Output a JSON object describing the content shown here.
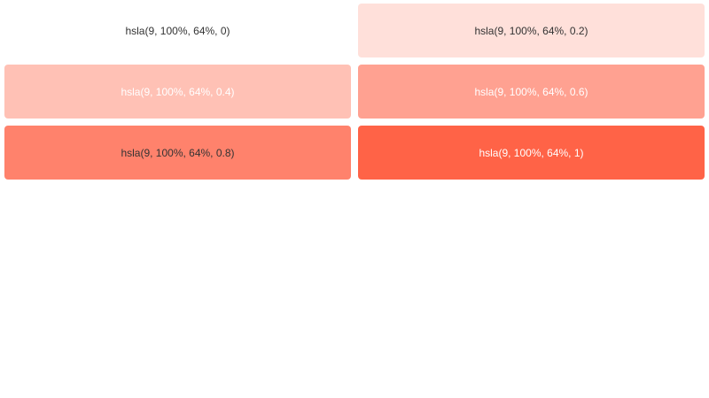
{
  "page": {
    "background": "#ffffff"
  },
  "palette": {
    "columns": 2,
    "rows": 3,
    "swatches": [
      {
        "label": "hsla(9, 100%, 64%, 0)",
        "background": "hsla(9, 100%, 64%, 0)",
        "text_color": "#333333"
      },
      {
        "label": "hsla(9, 100%, 64%, 0.2)",
        "background": "hsla(9, 100%, 64%, 0.2)",
        "text_color": "#333333"
      },
      {
        "label": "hsla(9, 100%, 64%, 0.4)",
        "background": "hsla(9, 100%, 64%, 0.4)",
        "text_color": "#ffffff"
      },
      {
        "label": "hsla(9, 100%, 64%, 0.6)",
        "background": "hsla(9, 100%, 64%, 0.6)",
        "text_color": "#ffffff"
      },
      {
        "label": "hsla(9, 100%, 64%, 0.8)",
        "background": "hsla(9, 100%, 64%, 0.8)",
        "text_color": "#333333"
      },
      {
        "label": "hsla(9, 100%, 64%, 1)",
        "background": "hsla(9, 100%, 64%, 1)",
        "text_color": "#ffffff"
      }
    ]
  }
}
